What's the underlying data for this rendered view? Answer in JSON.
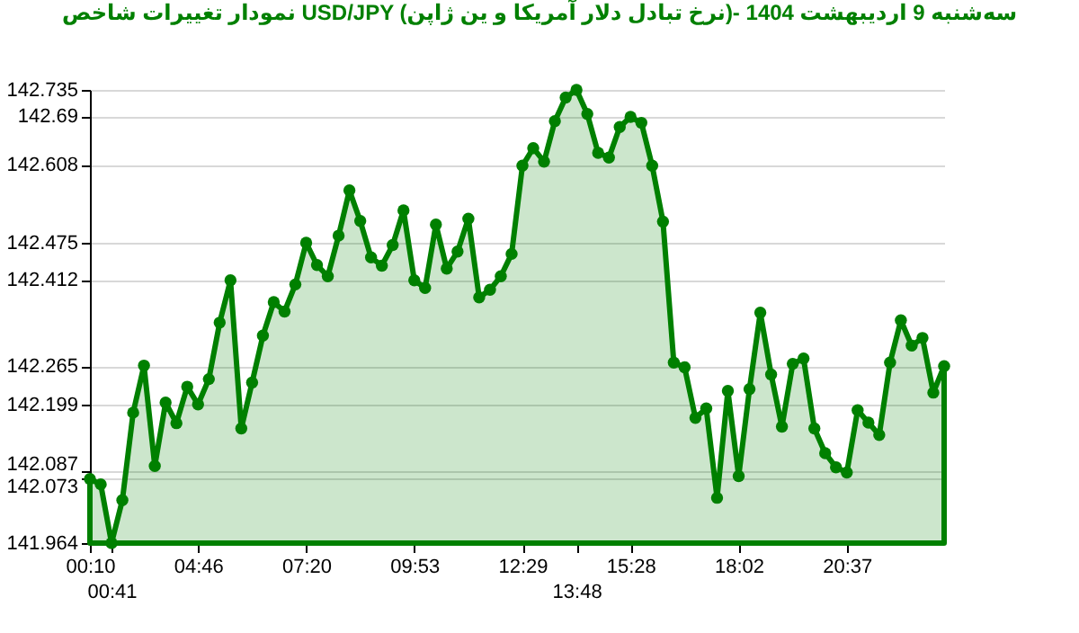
{
  "chart_data": {
    "type": "area",
    "title": "نمودار تغییرات شاخص USD/JPY (نرخ تبادل دلار آمریکا و ین ژاپن)- سه‌شنبه  9  اردیبهشت 1404",
    "categories": [
      "00:10",
      null,
      "00:41",
      null,
      null,
      null,
      null,
      null,
      null,
      null,
      "04:46",
      null,
      null,
      null,
      null,
      null,
      null,
      null,
      null,
      null,
      "07:20",
      null,
      null,
      null,
      null,
      null,
      null,
      null,
      null,
      null,
      "09:53",
      null,
      null,
      null,
      null,
      null,
      null,
      null,
      null,
      null,
      "12:29",
      null,
      null,
      null,
      null,
      "13:48",
      null,
      null,
      null,
      null,
      "15:28",
      null,
      null,
      null,
      null,
      null,
      null,
      null,
      null,
      null,
      "18:02",
      null,
      null,
      null,
      null,
      null,
      null,
      null,
      null,
      null,
      "20:37",
      null,
      null,
      null,
      null,
      null,
      null,
      null,
      null,
      null
    ],
    "series": [
      {
        "color": "#008000",
        "values": [
          142.073,
          142.064,
          141.964,
          142.037,
          142.186,
          142.266,
          142.095,
          142.203,
          142.168,
          142.23,
          142.2,
          142.243,
          142.339,
          142.411,
          142.159,
          142.237,
          142.317,
          142.374,
          142.358,
          142.404,
          142.475,
          142.437,
          142.418,
          142.487,
          142.564,
          142.512,
          142.45,
          142.436,
          142.471,
          142.53,
          142.411,
          142.398,
          142.506,
          142.431,
          142.46,
          142.516,
          142.382,
          142.395,
          142.418,
          142.456,
          142.606,
          142.636,
          142.613,
          142.682,
          142.722,
          142.735,
          142.694,
          142.628,
          142.62,
          142.672,
          142.689,
          142.679,
          142.606,
          142.511,
          142.271,
          142.263,
          142.177,
          142.193,
          142.041,
          142.223,
          142.078,
          142.226,
          142.356,
          142.251,
          142.162,
          142.269,
          142.278,
          142.159,
          142.117,
          142.093,
          142.084,
          142.19,
          142.169,
          142.148,
          142.271,
          142.343,
          142.3,
          142.313,
          142.22,
          142.265
        ]
      }
    ],
    "ylim": [
      141.964,
      142.735
    ],
    "yticks": [
      141.964,
      142.073,
      142.087,
      142.199,
      142.265,
      142.412,
      142.475,
      142.608,
      142.69,
      142.735
    ],
    "grid": "y",
    "marker": "circle",
    "line_style": "solid"
  }
}
